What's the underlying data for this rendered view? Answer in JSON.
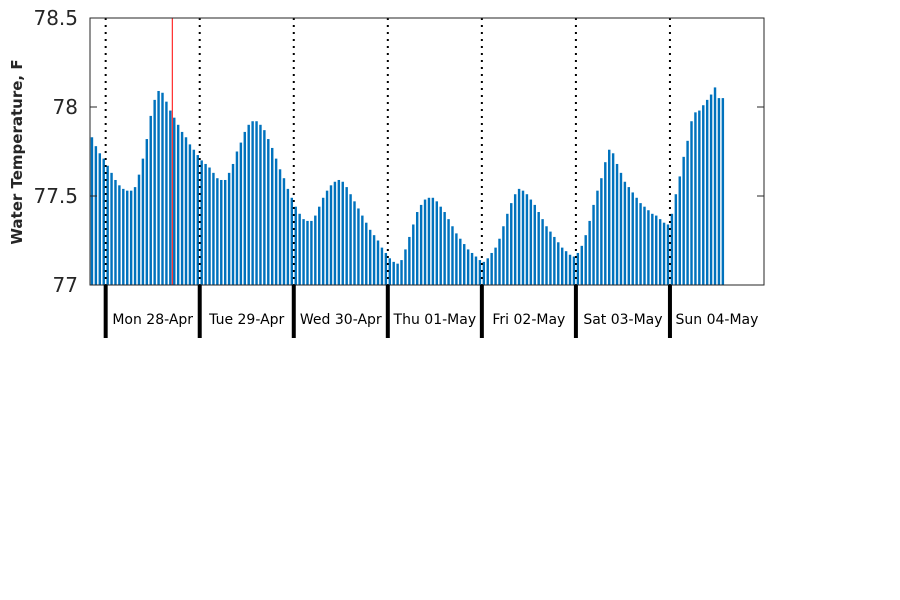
{
  "chart_data": {
    "type": "bar",
    "title": "",
    "xlabel": "",
    "ylabel": "Water Temperature, F",
    "ylim": [
      77,
      78.5
    ],
    "yticks": [
      77,
      77.5,
      78,
      78.5
    ],
    "ytick_labels": [
      "77",
      "77.5",
      "78",
      "78.5"
    ],
    "x_start": "2014-04-27 20:00",
    "x_end": "2014-05-04 23:00",
    "x_unit": "hour",
    "day_labels": [
      "Mon 28-Apr",
      "Tue 29-Apr",
      "Wed 30-Apr",
      "Thu 01-May",
      "Fri 02-May",
      "Sat 03-May",
      "Sun 04-May"
    ],
    "day_boundaries": [
      "2014-04-28 00:00",
      "2014-04-29 00:00",
      "2014-04-30 00:00",
      "2014-05-01 00:00",
      "2014-05-02 00:00",
      "2014-05-03 00:00",
      "2014-05-04 00:00"
    ],
    "marker_time": "2014-04-28 17:00",
    "marker_color": "#ff0000",
    "bar_color": "#0072bd",
    "grid": false,
    "values": [
      77.83,
      77.78,
      77.74,
      77.71,
      77.67,
      77.63,
      77.59,
      77.56,
      77.54,
      77.53,
      77.53,
      77.55,
      77.62,
      77.71,
      77.82,
      77.95,
      78.04,
      78.09,
      78.08,
      78.03,
      77.98,
      77.94,
      77.9,
      77.86,
      77.83,
      77.79,
      77.76,
      77.73,
      77.7,
      77.68,
      77.66,
      77.63,
      77.6,
      77.59,
      77.59,
      77.63,
      77.68,
      77.75,
      77.8,
      77.86,
      77.9,
      77.92,
      77.92,
      77.9,
      77.87,
      77.82,
      77.77,
      77.71,
      77.65,
      77.6,
      77.54,
      77.49,
      77.44,
      77.4,
      77.37,
      77.36,
      77.36,
      77.39,
      77.44,
      77.49,
      77.53,
      77.56,
      77.58,
      77.59,
      77.58,
      77.55,
      77.51,
      77.47,
      77.43,
      77.39,
      77.35,
      77.31,
      77.28,
      77.25,
      77.21,
      77.18,
      77.15,
      77.13,
      77.12,
      77.14,
      77.2,
      77.27,
      77.34,
      77.41,
      77.45,
      77.48,
      77.49,
      77.49,
      77.47,
      77.44,
      77.41,
      77.37,
      77.33,
      77.29,
      77.26,
      77.23,
      77.2,
      77.18,
      77.16,
      77.14,
      77.13,
      77.15,
      77.18,
      77.21,
      77.26,
      77.33,
      77.4,
      77.46,
      77.51,
      77.54,
      77.53,
      77.51,
      77.48,
      77.45,
      77.41,
      77.37,
      77.33,
      77.3,
      77.27,
      77.24,
      77.21,
      77.19,
      77.17,
      77.16,
      77.18,
      77.22,
      77.28,
      77.36,
      77.45,
      77.53,
      77.6,
      77.69,
      77.76,
      77.74,
      77.68,
      77.63,
      77.58,
      77.55,
      77.52,
      77.49,
      77.46,
      77.44,
      77.42,
      77.4,
      77.39,
      77.37,
      77.35,
      77.34,
      77.4,
      77.51,
      77.61,
      77.72,
      77.81,
      77.92,
      77.97,
      77.98,
      78.01,
      78.04,
      78.07,
      78.11,
      78.05,
      78.05
    ]
  }
}
